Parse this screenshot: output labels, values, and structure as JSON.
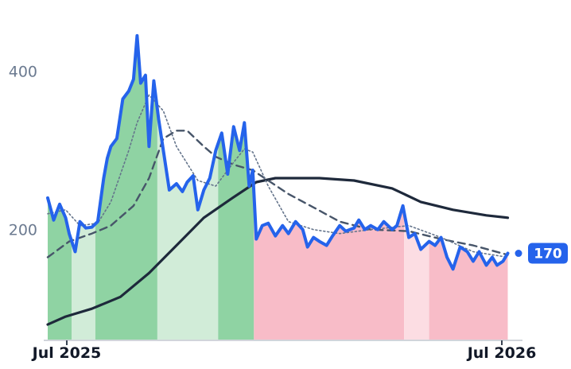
{
  "chart_data": {
    "type": "line",
    "title": "",
    "xlabel": "",
    "ylabel": "",
    "grid": false,
    "x_range": [
      "2025-06-15",
      "2026-07-15"
    ],
    "ylim": [
      60,
      470
    ],
    "y_ticks": [
      {
        "value": 200,
        "label": "200"
      },
      {
        "value": 400,
        "label": "400"
      }
    ],
    "x_ticks": [
      {
        "date": "2025-07-01",
        "label": "Jul 2025"
      },
      {
        "date": "2026-07-01",
        "label": "Jul 2026"
      }
    ],
    "last_value": {
      "value": 170,
      "label": "170"
    },
    "colors": {
      "price": "#2563eb",
      "ma_long": "#1e293b",
      "ma_mid": "#475569",
      "ma_short": "#64748b",
      "up_strong": "#8fd3a3",
      "up_light": "#d1ecd8",
      "down_strong": "#f8bcc8",
      "down_light": "#fcdde3",
      "axis": "#d1d5db",
      "badge": "#2563eb"
    },
    "bands": [
      {
        "from": "2025-06-15",
        "to": "2025-07-05",
        "color": "up_strong"
      },
      {
        "from": "2025-07-05",
        "to": "2025-07-25",
        "color": "up_light"
      },
      {
        "from": "2025-07-25",
        "to": "2025-09-15",
        "color": "up_strong"
      },
      {
        "from": "2025-09-15",
        "to": "2025-11-05",
        "color": "up_light"
      },
      {
        "from": "2025-11-05",
        "to": "2025-12-05",
        "color": "up_strong"
      },
      {
        "from": "2025-12-05",
        "to": "2026-04-10",
        "color": "down_strong"
      },
      {
        "from": "2026-04-10",
        "to": "2026-05-01",
        "color": "down_light"
      },
      {
        "from": "2026-05-01",
        "to": "2026-07-15",
        "color": "down_strong"
      }
    ],
    "series": [
      {
        "key": "price",
        "style": "solid-thick",
        "points": [
          [
            "2025-06-15",
            240
          ],
          [
            "2025-06-20",
            212
          ],
          [
            "2025-06-25",
            232
          ],
          [
            "2025-06-30",
            215
          ],
          [
            "2025-07-03",
            195
          ],
          [
            "2025-07-08",
            172
          ],
          [
            "2025-07-12",
            210
          ],
          [
            "2025-07-17",
            202
          ],
          [
            "2025-07-22",
            203
          ],
          [
            "2025-07-27",
            210
          ],
          [
            "2025-08-01",
            265
          ],
          [
            "2025-08-04",
            290
          ],
          [
            "2025-08-07",
            305
          ],
          [
            "2025-08-12",
            315
          ],
          [
            "2025-08-17",
            365
          ],
          [
            "2025-08-22",
            375
          ],
          [
            "2025-08-26",
            390
          ],
          [
            "2025-08-29",
            445
          ],
          [
            "2025-09-01",
            385
          ],
          [
            "2025-09-05",
            395
          ],
          [
            "2025-09-08",
            305
          ],
          [
            "2025-09-12",
            388
          ],
          [
            "2025-09-16",
            340
          ],
          [
            "2025-09-20",
            300
          ],
          [
            "2025-09-25",
            250
          ],
          [
            "2025-10-01",
            258
          ],
          [
            "2025-10-06",
            248
          ],
          [
            "2025-10-10",
            260
          ],
          [
            "2025-10-15",
            268
          ],
          [
            "2025-10-19",
            225
          ],
          [
            "2025-10-24",
            250
          ],
          [
            "2025-10-29",
            265
          ],
          [
            "2025-11-03",
            300
          ],
          [
            "2025-11-08",
            322
          ],
          [
            "2025-11-13",
            270
          ],
          [
            "2025-11-18",
            330
          ],
          [
            "2025-11-23",
            300
          ],
          [
            "2025-11-27",
            335
          ],
          [
            "2025-12-01",
            255
          ],
          [
            "2025-12-04",
            275
          ],
          [
            "2025-12-07",
            188
          ],
          [
            "2025-12-12",
            205
          ],
          [
            "2025-12-17",
            208
          ],
          [
            "2025-12-23",
            192
          ],
          [
            "2025-12-29",
            205
          ],
          [
            "2026-01-03",
            195
          ],
          [
            "2026-01-09",
            210
          ],
          [
            "2026-01-15",
            200
          ],
          [
            "2026-01-19",
            178
          ],
          [
            "2026-01-24",
            190
          ],
          [
            "2026-01-29",
            185
          ],
          [
            "2026-02-04",
            180
          ],
          [
            "2026-02-09",
            192
          ],
          [
            "2026-02-15",
            205
          ],
          [
            "2026-02-20",
            198
          ],
          [
            "2026-02-27",
            202
          ],
          [
            "2026-03-03",
            212
          ],
          [
            "2026-03-08",
            200
          ],
          [
            "2026-03-13",
            205
          ],
          [
            "2026-03-19",
            200
          ],
          [
            "2026-03-24",
            210
          ],
          [
            "2026-03-31",
            200
          ],
          [
            "2026-04-04",
            205
          ],
          [
            "2026-04-09",
            230
          ],
          [
            "2026-04-14",
            190
          ],
          [
            "2026-04-19",
            195
          ],
          [
            "2026-04-24",
            175
          ],
          [
            "2026-05-01",
            185
          ],
          [
            "2026-05-06",
            180
          ],
          [
            "2026-05-11",
            190
          ],
          [
            "2026-05-16",
            165
          ],
          [
            "2026-05-21",
            150
          ],
          [
            "2026-05-27",
            178
          ],
          [
            "2026-06-02",
            172
          ],
          [
            "2026-06-07",
            160
          ],
          [
            "2026-06-12",
            172
          ],
          [
            "2026-06-18",
            155
          ],
          [
            "2026-06-23",
            165
          ],
          [
            "2026-06-27",
            155
          ],
          [
            "2026-07-02",
            160
          ],
          [
            "2026-07-06",
            170
          ]
        ]
      },
      {
        "key": "ma_long",
        "style": "solid",
        "points": [
          [
            "2025-06-15",
            80
          ],
          [
            "2025-06-30",
            90
          ],
          [
            "2025-07-22",
            100
          ],
          [
            "2025-08-15",
            115
          ],
          [
            "2025-09-08",
            145
          ],
          [
            "2025-10-01",
            180
          ],
          [
            "2025-10-24",
            215
          ],
          [
            "2025-11-17",
            240
          ],
          [
            "2025-12-07",
            260
          ],
          [
            "2025-12-23",
            265
          ],
          [
            "2026-01-29",
            265
          ],
          [
            "2026-02-27",
            262
          ],
          [
            "2026-03-31",
            252
          ],
          [
            "2026-04-24",
            235
          ],
          [
            "2026-05-21",
            225
          ],
          [
            "2026-06-18",
            218
          ],
          [
            "2026-07-06",
            215
          ]
        ]
      },
      {
        "key": "ma_mid",
        "style": "dashed",
        "points": [
          [
            "2025-06-15",
            165
          ],
          [
            "2025-07-03",
            185
          ],
          [
            "2025-07-22",
            195
          ],
          [
            "2025-08-07",
            205
          ],
          [
            "2025-08-26",
            230
          ],
          [
            "2025-09-08",
            265
          ],
          [
            "2025-09-20",
            315
          ],
          [
            "2025-10-01",
            325
          ],
          [
            "2025-10-10",
            325
          ],
          [
            "2025-10-24",
            305
          ],
          [
            "2025-11-03",
            292
          ],
          [
            "2025-11-18",
            282
          ],
          [
            "2025-12-04",
            275
          ],
          [
            "2025-12-17",
            262
          ],
          [
            "2026-01-03",
            245
          ],
          [
            "2026-01-24",
            228
          ],
          [
            "2026-02-15",
            210
          ],
          [
            "2026-03-13",
            200
          ],
          [
            "2026-04-14",
            198
          ],
          [
            "2026-05-11",
            188
          ],
          [
            "2026-06-07",
            180
          ],
          [
            "2026-07-06",
            168
          ]
        ]
      },
      {
        "key": "ma_short",
        "style": "dotted",
        "points": [
          [
            "2025-06-15",
            220
          ],
          [
            "2025-06-30",
            225
          ],
          [
            "2025-07-12",
            205
          ],
          [
            "2025-07-27",
            208
          ],
          [
            "2025-08-07",
            235
          ],
          [
            "2025-08-22",
            300
          ],
          [
            "2025-08-29",
            335
          ],
          [
            "2025-09-08",
            370
          ],
          [
            "2025-09-20",
            350
          ],
          [
            "2025-10-01",
            305
          ],
          [
            "2025-10-19",
            262
          ],
          [
            "2025-11-03",
            255
          ],
          [
            "2025-11-18",
            285
          ],
          [
            "2025-11-27",
            302
          ],
          [
            "2025-12-04",
            298
          ],
          [
            "2025-12-17",
            255
          ],
          [
            "2026-01-03",
            210
          ],
          [
            "2026-01-24",
            200
          ],
          [
            "2026-02-15",
            195
          ],
          [
            "2026-03-13",
            200
          ],
          [
            "2026-04-14",
            205
          ],
          [
            "2026-05-11",
            190
          ],
          [
            "2026-06-07",
            172
          ],
          [
            "2026-07-06",
            165
          ]
        ]
      }
    ]
  }
}
